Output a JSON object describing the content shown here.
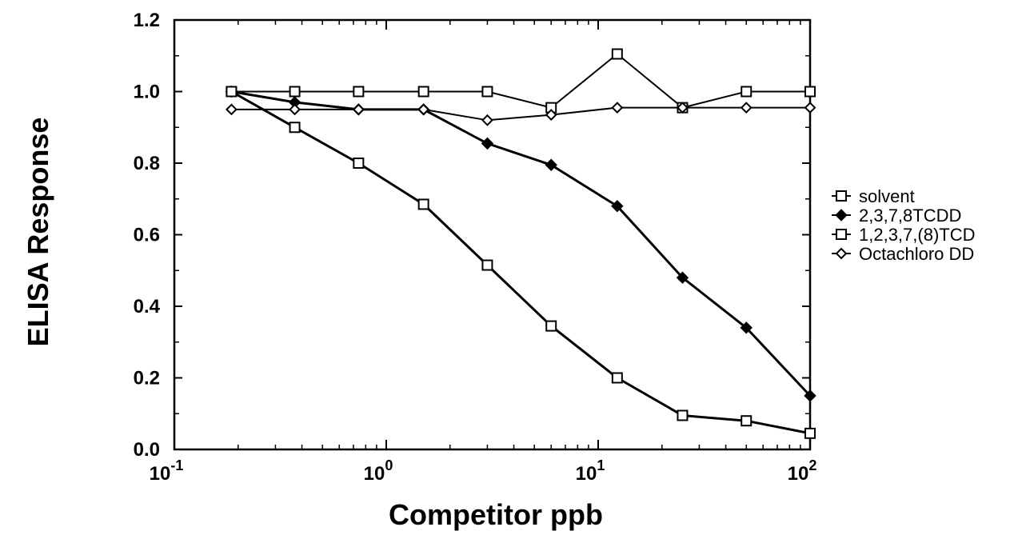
{
  "chart_data": {
    "type": "line",
    "title": "",
    "xlabel": "Competitor ppb",
    "ylabel": "ELISA Response",
    "xscale": "log",
    "xlim": [
      0.1,
      100
    ],
    "ylim": [
      0.0,
      1.2
    ],
    "grid": false,
    "legend_position": "right",
    "x_ticks": [
      {
        "value": 0.1,
        "base": "10",
        "exp": "-1"
      },
      {
        "value": 1,
        "base": "10",
        "exp": "0"
      },
      {
        "value": 10,
        "base": "10",
        "exp": "1"
      },
      {
        "value": 100,
        "base": "10",
        "exp": "2"
      }
    ],
    "y_ticks": [
      {
        "value": 0.0,
        "label": "0.0"
      },
      {
        "value": 0.2,
        "label": "0.2"
      },
      {
        "value": 0.4,
        "label": "0.4"
      },
      {
        "value": 0.6,
        "label": "0.6"
      },
      {
        "value": 0.8,
        "label": "0.8"
      },
      {
        "value": 1.0,
        "label": "1.0"
      },
      {
        "value": 1.2,
        "label": "1.2"
      }
    ],
    "x": [
      0.186,
      0.37,
      0.74,
      1.5,
      3.0,
      6.0,
      12.3,
      25,
      50,
      100
    ],
    "series": [
      {
        "name": "solvent",
        "marker": "open-square",
        "color": "#000000",
        "values": [
          1.0,
          1.0,
          1.0,
          1.0,
          1.0,
          0.955,
          1.105,
          0.955,
          1.0,
          1.0
        ]
      },
      {
        "name": "2,3,7,8TCDD",
        "marker": "filled-diamond",
        "color": "#000000",
        "values": [
          1.0,
          0.97,
          0.95,
          0.95,
          0.855,
          0.795,
          0.68,
          0.48,
          0.34,
          0.15
        ]
      },
      {
        "name": "1,2,3,7,(8)TCD",
        "marker": "open-square",
        "color": "#000000",
        "values": [
          1.0,
          0.9,
          0.8,
          0.685,
          0.515,
          0.345,
          0.2,
          0.095,
          0.08,
          0.045
        ]
      },
      {
        "name": "Octachloro DD",
        "marker": "open-diamond",
        "color": "#000000",
        "values": [
          0.95,
          0.95,
          0.95,
          0.95,
          0.92,
          0.935,
          0.955,
          0.955,
          0.955,
          0.955
        ]
      }
    ]
  }
}
